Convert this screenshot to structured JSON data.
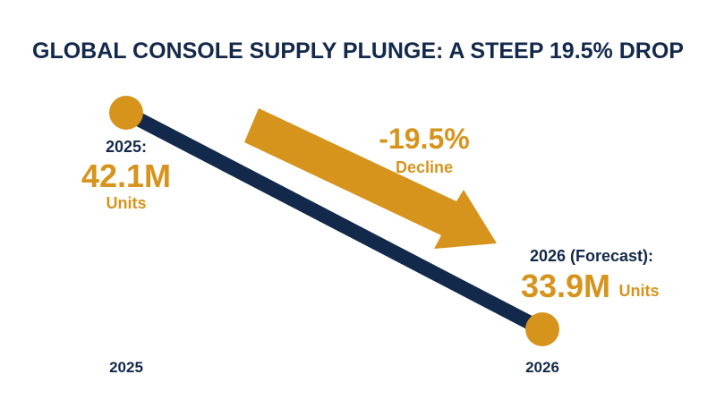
{
  "chart_data": {
    "type": "line",
    "title": "GLOBAL CONSOLE SUPPLY PLUNGE: A STEEP 19.5% DROP",
    "categories": [
      "2025",
      "2026"
    ],
    "series": [
      {
        "values": [
          42.1,
          33.9
        ]
      }
    ],
    "annotations": {
      "start": {
        "label": "2025:",
        "value": "42.1M",
        "unit": "Units"
      },
      "end": {
        "label": "2026 (Forecast):",
        "value": "33.9M",
        "unit": "Units"
      },
      "change": {
        "value": "-19.5%",
        "label": "Decline"
      }
    },
    "grid": false,
    "colors": {
      "line": "#13294b",
      "marker": "#d6941d",
      "accent": "#d6941d",
      "text": "#13294b"
    }
  }
}
